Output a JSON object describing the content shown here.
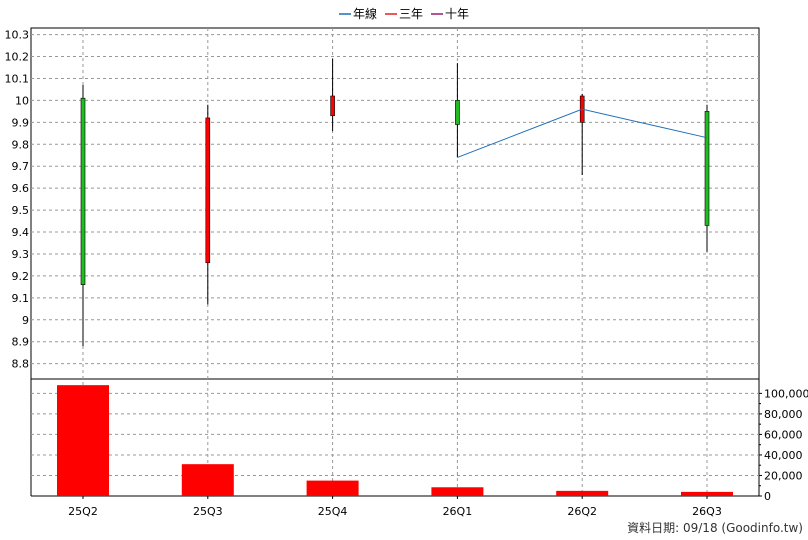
{
  "chart_data": [
    {
      "type": "candlestick",
      "categories": [
        "25Q2",
        "25Q3",
        "25Q4",
        "26Q1",
        "26Q2",
        "26Q3"
      ],
      "ohlc": [
        {
          "open": 9.16,
          "high": 10.07,
          "low": 8.88,
          "close": 10.01
        },
        {
          "open": 9.92,
          "high": 9.98,
          "low": 9.07,
          "close": 9.26
        },
        {
          "open": 10.02,
          "high": 10.19,
          "low": 9.86,
          "close": 9.93
        },
        {
          "open": 9.89,
          "high": 10.17,
          "low": 9.74,
          "close": 10.0
        },
        {
          "open": 10.02,
          "high": 10.03,
          "low": 9.66,
          "close": 9.9
        },
        {
          "open": 9.43,
          "high": 9.98,
          "low": 9.31,
          "close": 9.95
        }
      ],
      "series": [
        {
          "name": "年線",
          "color": "#1f6fb8",
          "values": [
            null,
            null,
            null,
            9.74,
            9.96,
            9.83
          ]
        },
        {
          "name": "三年",
          "color": "#dd2222",
          "values": [
            null,
            null,
            null,
            null,
            null,
            null
          ]
        },
        {
          "name": "十年",
          "color": "#9b1a6e",
          "values": [
            null,
            null,
            null,
            null,
            null,
            null
          ]
        }
      ],
      "y_ticks": [
        "8.8",
        "8.9",
        "9",
        "9.1",
        "9.2",
        "9.3",
        "9.4",
        "9.5",
        "9.6",
        "9.7",
        "9.8",
        "9.9",
        "10",
        "10.1",
        "10.2",
        "10.3"
      ],
      "ylim": [
        8.73,
        10.33
      ],
      "legend_position": "top-center",
      "grid": true
    },
    {
      "type": "bar",
      "categories": [
        "25Q2",
        "25Q3",
        "25Q4",
        "26Q1",
        "26Q2",
        "26Q3"
      ],
      "values": [
        108000,
        31000,
        15000,
        8500,
        5000,
        4000
      ],
      "y_ticks": [
        "0",
        "20,000",
        "40,000",
        "60,000",
        "80,000",
        "100,000"
      ],
      "ylim": [
        0,
        114000
      ],
      "color": "#ff0000",
      "grid": true
    }
  ],
  "footer": "資料日期: 09/18  (Goodinfo.tw)",
  "colors": {
    "up": "#ff0000",
    "down": "#22bb22",
    "grid": "#999999"
  }
}
